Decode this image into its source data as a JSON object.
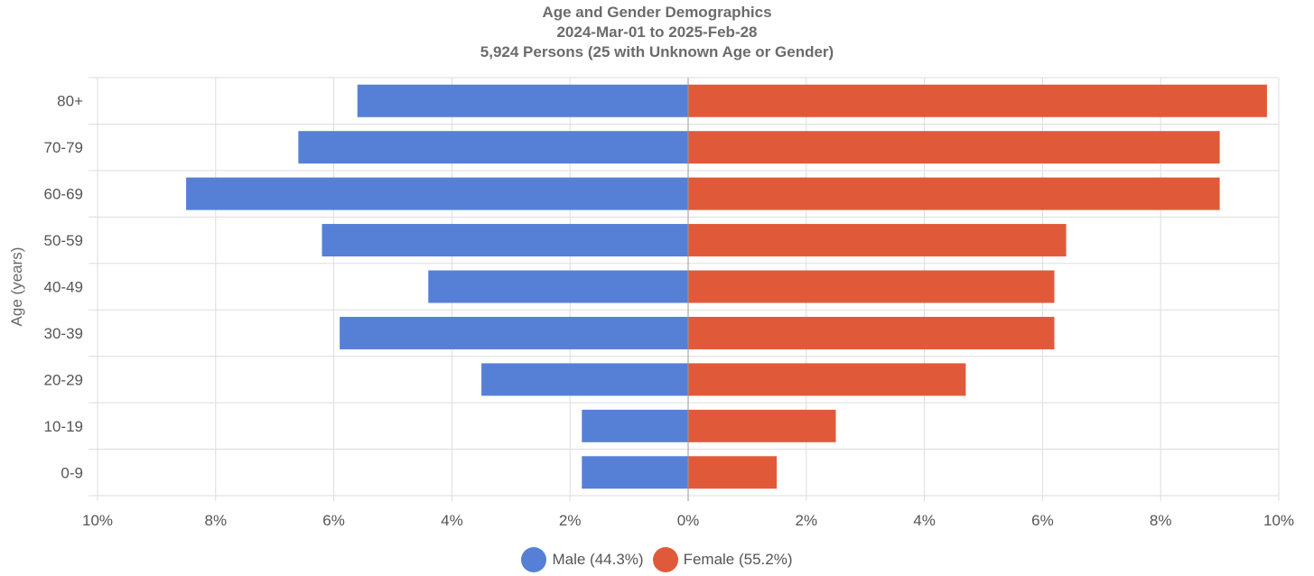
{
  "chart_data": {
    "type": "bar",
    "orientation": "horizontal",
    "title": "Age and Gender Demographics",
    "subtitle_lines": [
      "2024-Mar-01 to 2025-Feb-28",
      "5,924 Persons (25 with Unknown Age or Gender)"
    ],
    "ylabel": "Age (years)",
    "xlabel": "",
    "categories": [
      "80+",
      "70-79",
      "60-69",
      "50-59",
      "40-49",
      "30-39",
      "20-29",
      "10-19",
      "0-9"
    ],
    "x_ticks": [
      "10%",
      "8%",
      "6%",
      "4%",
      "2%",
      "0%",
      "2%",
      "4%",
      "6%",
      "8%",
      "10%"
    ],
    "xlim": [
      -10,
      10
    ],
    "grid": true,
    "legend_position": "bottom",
    "series": [
      {
        "name": "Male (44.3%)",
        "color": "#5580d6",
        "direction": "left",
        "values": [
          5.6,
          6.6,
          8.5,
          6.2,
          4.4,
          5.9,
          3.5,
          1.8,
          1.8
        ]
      },
      {
        "name": "Female (55.2%)",
        "color": "#e05a3a",
        "direction": "right",
        "values": [
          9.8,
          9.0,
          9.0,
          6.4,
          6.2,
          6.2,
          4.7,
          2.5,
          1.5
        ]
      }
    ]
  }
}
